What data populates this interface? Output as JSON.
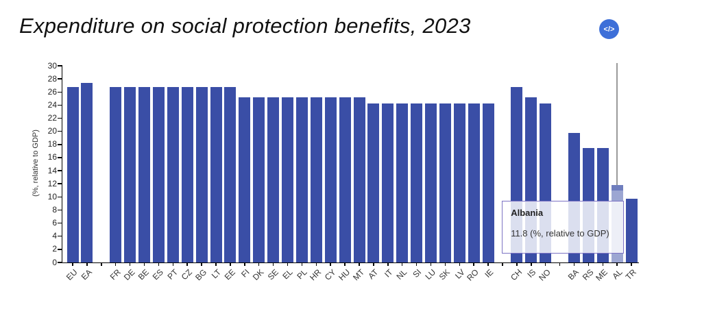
{
  "header": {
    "title": "Expenditure on social protection benefits, 2023",
    "embed_glyph": "</>",
    "embed_color": "#3d6fd8"
  },
  "chart_data": {
    "type": "bar",
    "title": "Expenditure on social protection benefits, 2023",
    "ylabel": "(%, relative to GDP)",
    "xlabel": "",
    "ylim": [
      0,
      30
    ],
    "ytick_step": 2,
    "grid": false,
    "legend": "none",
    "bar_color": "#3a4ea6",
    "highlight_color": "rgba(58,78,166,0.5)",
    "crosshair_color": "#9a9a9a",
    "bars": [
      {
        "label": "EU",
        "value": 26.8
      },
      {
        "label": "EA",
        "value": 27.4
      },
      {
        "label": "",
        "value": null
      },
      {
        "label": "FR",
        "value": 26.8
      },
      {
        "label": "DE",
        "value": 26.8
      },
      {
        "label": "BE",
        "value": 26.8
      },
      {
        "label": "ES",
        "value": 26.8
      },
      {
        "label": "PT",
        "value": 26.8
      },
      {
        "label": "CZ",
        "value": 26.8
      },
      {
        "label": "BG",
        "value": 26.8
      },
      {
        "label": "LT",
        "value": 26.8
      },
      {
        "label": "EE",
        "value": 26.8
      },
      {
        "label": "FI",
        "value": 25.2
      },
      {
        "label": "DK",
        "value": 25.2
      },
      {
        "label": "SE",
        "value": 25.2
      },
      {
        "label": "EL",
        "value": 25.2
      },
      {
        "label": "PL",
        "value": 25.2
      },
      {
        "label": "HR",
        "value": 25.2
      },
      {
        "label": "CY",
        "value": 25.2
      },
      {
        "label": "HU",
        "value": 25.2
      },
      {
        "label": "MT",
        "value": 25.2
      },
      {
        "label": "AT",
        "value": 24.3
      },
      {
        "label": "IT",
        "value": 24.3
      },
      {
        "label": "NL",
        "value": 24.3
      },
      {
        "label": "SI",
        "value": 24.3
      },
      {
        "label": "LU",
        "value": 24.3
      },
      {
        "label": "SK",
        "value": 24.3
      },
      {
        "label": "LV",
        "value": 24.3
      },
      {
        "label": "RO",
        "value": 24.3
      },
      {
        "label": "IE",
        "value": 24.3
      },
      {
        "label": "",
        "value": null
      },
      {
        "label": "CH",
        "value": 26.8
      },
      {
        "label": "IS",
        "value": 25.2
      },
      {
        "label": "NO",
        "value": 24.3
      },
      {
        "label": "",
        "value": null
      },
      {
        "label": "BA",
        "value": 19.8
      },
      {
        "label": "RS",
        "value": 17.5
      },
      {
        "label": "ME",
        "value": 17.5
      },
      {
        "label": "AL",
        "value": 11.8,
        "highlighted": true
      },
      {
        "label": "TR",
        "value": 9.7
      }
    ],
    "tooltip": {
      "title": "Albania",
      "value_text": "11.8 (%, relative to GDP)"
    }
  }
}
